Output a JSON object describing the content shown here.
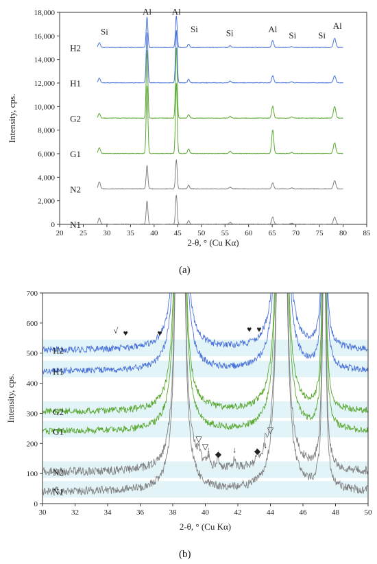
{
  "colors": {
    "H": "#4a72d9",
    "G": "#5aa832",
    "N": "#808080",
    "band_b": "#e3f4f8"
  },
  "chart_data": [
    {
      "type": "line",
      "caption": "(a)",
      "xlabel": "2-θ, ° (Cu Kα)",
      "ylabel": "Intensity, cps.",
      "xlim": [
        20,
        85
      ],
      "ylim": [
        0,
        18000
      ],
      "x_ticks": [
        "20",
        "25",
        "30",
        "35",
        "40",
        "45",
        "50",
        "55",
        "60",
        "65",
        "70",
        "75",
        "80",
        "85"
      ],
      "y_ticks": [
        "0",
        "2,000",
        "4,000",
        "6,000",
        "8,000",
        "10,000",
        "12,000",
        "14,000",
        "16,000",
        "18,000"
      ],
      "peaks": [
        28.4,
        38.5,
        44.7,
        47.3,
        56.1,
        65.1,
        69.1,
        78.2
      ],
      "series": [
        {
          "name": "N1",
          "color": "N",
          "baseline": 0,
          "peak_heights": [
            500,
            2000,
            2500,
            300,
            150,
            600,
            80,
            600
          ]
        },
        {
          "name": "N2",
          "color": "N",
          "baseline": 3000,
          "peak_heights": [
            600,
            2000,
            2500,
            300,
            150,
            500,
            80,
            700
          ]
        },
        {
          "name": "G1",
          "color": "G",
          "baseline": 6000,
          "peak_heights": [
            500,
            5800,
            6000,
            400,
            200,
            2000,
            100,
            900
          ]
        },
        {
          "name": "G2",
          "color": "G",
          "baseline": 9000,
          "peak_heights": [
            400,
            5800,
            6000,
            300,
            150,
            1000,
            100,
            1000
          ]
        },
        {
          "name": "H1",
          "color": "H",
          "baseline": 12000,
          "peak_heights": [
            400,
            4300,
            4500,
            300,
            150,
            600,
            80,
            600
          ]
        },
        {
          "name": "H2",
          "color": "H",
          "baseline": 15000,
          "peak_heights": [
            400,
            2600,
            2700,
            300,
            150,
            600,
            80,
            800
          ]
        }
      ],
      "annotations": [
        {
          "text": "Si",
          "x": 29.5,
          "y": 16100
        },
        {
          "text": "Al",
          "x": 38.5,
          "y": 17800
        },
        {
          "text": "Al",
          "x": 44.7,
          "y": 17800
        },
        {
          "text": "Si",
          "x": 48.5,
          "y": 16300
        },
        {
          "text": "Si",
          "x": 56.0,
          "y": 16000
        },
        {
          "text": "Al",
          "x": 65.1,
          "y": 16300
        },
        {
          "text": "Si",
          "x": 69.3,
          "y": 15800
        },
        {
          "text": "Si",
          "x": 75.5,
          "y": 15800
        },
        {
          "text": "Al",
          "x": 78.8,
          "y": 16600
        }
      ]
    },
    {
      "type": "line",
      "caption": "(b)",
      "xlabel": "2-θ, ° (Cu Kα)",
      "ylabel": "Intensity, cps.",
      "xlim": [
        30,
        50
      ],
      "ylim": [
        0,
        700
      ],
      "x_ticks": [
        "30",
        "32",
        "34",
        "36",
        "38",
        "40",
        "42",
        "44",
        "46",
        "48",
        "50"
      ],
      "y_ticks": [
        "0",
        "100",
        "200",
        "300",
        "400",
        "500",
        "600",
        "700"
      ],
      "series": [
        {
          "name": "N1",
          "color": "N",
          "baseline": 40
        },
        {
          "name": "N2",
          "color": "N",
          "baseline": 105
        },
        {
          "name": "G1",
          "color": "G",
          "baseline": 240
        },
        {
          "name": "G2",
          "color": "G",
          "baseline": 305
        },
        {
          "name": "H1",
          "color": "H",
          "baseline": 440
        },
        {
          "name": "H2",
          "color": "H",
          "baseline": 510
        }
      ],
      "annotations": [
        {
          "text": "√",
          "x": 34.5,
          "y": 565
        },
        {
          "text": "♥",
          "x": 35.1,
          "y": 558
        },
        {
          "text": "♥",
          "x": 37.2,
          "y": 558
        },
        {
          "text": "♥",
          "x": 42.7,
          "y": 570
        },
        {
          "text": "♥",
          "x": 43.3,
          "y": 570
        },
        {
          "text": "▽",
          "x": 39.6,
          "y": 205
        },
        {
          "text": "▽",
          "x": 40.0,
          "y": 180
        },
        {
          "text": "↓",
          "x": 40.2,
          "y": 170
        },
        {
          "text": "◆",
          "x": 40.8,
          "y": 155
        },
        {
          "text": "↓",
          "x": 41.8,
          "y": 170
        },
        {
          "text": "◆",
          "x": 43.2,
          "y": 165
        },
        {
          "text": "↓",
          "x": 43.7,
          "y": 185
        },
        {
          "text": "▽",
          "x": 44.0,
          "y": 235
        }
      ]
    }
  ]
}
